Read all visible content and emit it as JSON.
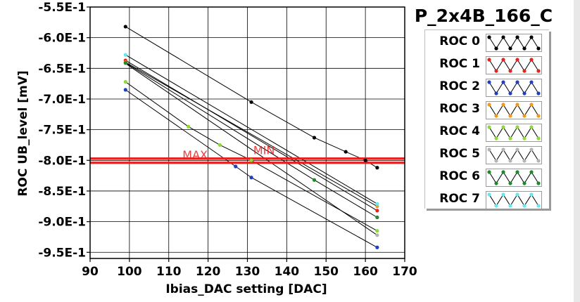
{
  "title": "P_2x4B_166_C",
  "chart_data": {
    "type": "line",
    "title": "P_2x4B_166_C",
    "xlabel": "Ibias_DAC setting [DAC]",
    "ylabel": "ROC UB_level [mV]",
    "xlim": [
      90,
      170
    ],
    "ylim": [
      -0.96,
      -0.55
    ],
    "xticks": [
      90,
      100,
      110,
      120,
      130,
      140,
      150,
      160,
      170
    ],
    "xtick_labels": [
      "90",
      "100",
      "110",
      "120",
      "130",
      "140",
      "150",
      "160",
      "170"
    ],
    "yticks": [
      -0.55,
      -0.6,
      -0.65,
      -0.7,
      -0.75,
      -0.8,
      -0.85,
      -0.9,
      -0.95
    ],
    "ytick_labels": [
      "-5.5E-1",
      "-6.0E-1",
      "-6.5E-1",
      "-7.0E-1",
      "-7.5E-1",
      "-8.0E-1",
      "-8.5E-1",
      "-9.0E-1",
      "-9.5E-1"
    ],
    "grid": true,
    "legend_position": "right",
    "series": [
      {
        "name": "ROC 0",
        "color": "#000000",
        "x": [
          99,
          131,
          147,
          155,
          160,
          163
        ],
        "y": [
          -0.582,
          -0.705,
          -0.763,
          -0.786,
          -0.8,
          -0.812
        ]
      },
      {
        "name": "ROC 1",
        "color": "#e8201e",
        "x": [
          99,
          163
        ],
        "y": [
          -0.637,
          -0.882
        ]
      },
      {
        "name": "ROC 2",
        "color": "#1f3fbf",
        "x": [
          99,
          127,
          131,
          163
        ],
        "y": [
          -0.685,
          -0.81,
          -0.828,
          -0.942
        ]
      },
      {
        "name": "ROC 3",
        "color": "#f09a18",
        "x": [
          99,
          163
        ],
        "y": [
          -0.64,
          -0.875
        ]
      },
      {
        "name": "ROC 4",
        "color": "#8ed83a",
        "x": [
          99,
          115,
          123,
          131,
          163
        ],
        "y": [
          -0.672,
          -0.745,
          -0.775,
          -0.8,
          -0.915
        ]
      },
      {
        "name": "ROC 5",
        "color": "#b4b4b4",
        "x": [
          99,
          163
        ],
        "y": [
          -0.642,
          -0.922
        ]
      },
      {
        "name": "ROC 6",
        "color": "#1c8a28",
        "x": [
          99,
          147,
          163
        ],
        "y": [
          -0.641,
          -0.832,
          -0.893
        ]
      },
      {
        "name": "ROC 7",
        "color": "#66e6f0",
        "x": [
          99,
          163
        ],
        "y": [
          -0.628,
          -0.871
        ]
      }
    ],
    "reference_lines": [
      {
        "label": "MAX",
        "y": -0.804,
        "color": "#e8201e",
        "label_x": 113.5
      },
      {
        "label": "MIN",
        "y": -0.797,
        "color": "#e8201e",
        "label_x": 131.5
      }
    ]
  },
  "legend": {
    "items": [
      {
        "label": "ROC 0",
        "color": "#000000"
      },
      {
        "label": "ROC 1",
        "color": "#e8201e"
      },
      {
        "label": "ROC 2",
        "color": "#1f3fbf"
      },
      {
        "label": "ROC 3",
        "color": "#f09a18"
      },
      {
        "label": "ROC 4",
        "color": "#8ed83a"
      },
      {
        "label": "ROC 5",
        "color": "#b4b4b4"
      },
      {
        "label": "ROC 6",
        "color": "#1c8a28"
      },
      {
        "label": "ROC 7",
        "color": "#66e6f0"
      }
    ]
  }
}
